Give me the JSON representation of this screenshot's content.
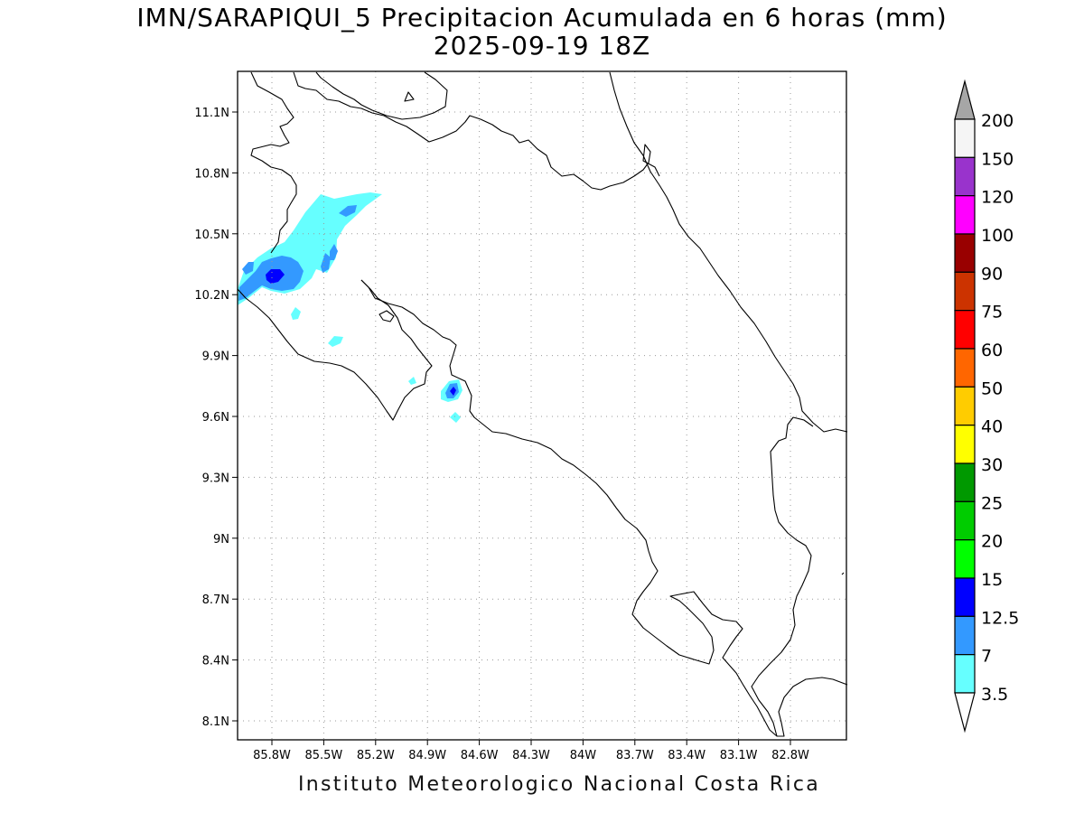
{
  "header": {
    "title_line1": "IMN/SARAPIQUI_5 Precipitacion Acumulada en 6 horas (mm)",
    "title_line2": "2025-09-19 18Z"
  },
  "footer": {
    "credit": "Instituto Meteorologico Nacional Costa Rica"
  },
  "map": {
    "lon_labels": [
      "85.8W",
      "85.5W",
      "85.2W",
      "84.9W",
      "84.6W",
      "84.3W",
      "84W",
      "83.7W",
      "83.4W",
      "83.1W",
      "82.8W"
    ],
    "lat_labels": [
      "11.1N",
      "10.8N",
      "10.5N",
      "10.2N",
      "9.9N",
      "9.6N",
      "9.3N",
      "9N",
      "8.7N",
      "8.4N",
      "8.1N"
    ],
    "grid": "dotted"
  },
  "legend": {
    "units": "mm",
    "levels": [
      "3.5",
      "7",
      "12.5",
      "15",
      "20",
      "25",
      "30",
      "40",
      "50",
      "60",
      "75",
      "90",
      "100",
      "120",
      "150",
      "200"
    ],
    "colors": [
      "#66ffff",
      "#3399ff",
      "#0000ff",
      "#00ff00",
      "#00cc00",
      "#009900",
      "#ffff00",
      "#ffcc00",
      "#ff6600",
      "#ff0000",
      "#cc3300",
      "#990000",
      "#ff00ff",
      "#9933cc",
      "#f5f5f5"
    ],
    "under_color": "#ffffff",
    "over_color": "#a6a6a6"
  }
}
